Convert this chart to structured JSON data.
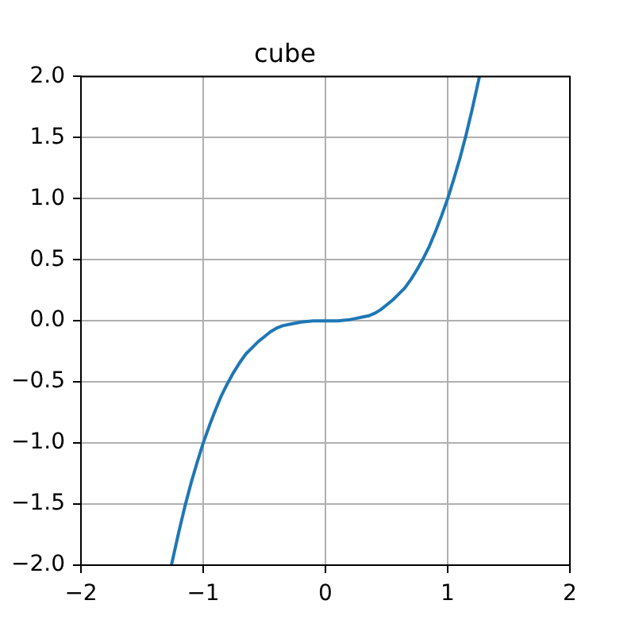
{
  "chart_data": {
    "type": "line",
    "title": "cube",
    "x": [
      -1.26,
      -1.2,
      -1.15,
      -1.1,
      -1.05,
      -1.0,
      -0.95,
      -0.9,
      -0.85,
      -0.8,
      -0.75,
      -0.7,
      -0.65,
      -0.6,
      -0.55,
      -0.5,
      -0.45,
      -0.4,
      -0.35,
      -0.3,
      -0.25,
      -0.2,
      -0.1,
      0,
      0.1,
      0.2,
      0.25,
      0.3,
      0.35,
      0.4,
      0.45,
      0.5,
      0.55,
      0.6,
      0.65,
      0.7,
      0.75,
      0.8,
      0.85,
      0.9,
      0.95,
      1.0,
      1.05,
      1.1,
      1.15,
      1.2,
      1.26
    ],
    "values": [
      -2.0,
      -1.73,
      -1.52,
      -1.33,
      -1.16,
      -1.0,
      -0.86,
      -0.73,
      -0.61,
      -0.51,
      -0.42,
      -0.34,
      -0.27,
      -0.22,
      -0.17,
      -0.13,
      -0.09,
      -0.06,
      -0.04,
      -0.03,
      -0.02,
      -0.01,
      0.0,
      0.0,
      0.0,
      0.01,
      0.02,
      0.03,
      0.04,
      0.06,
      0.09,
      0.13,
      0.17,
      0.22,
      0.27,
      0.34,
      0.42,
      0.51,
      0.61,
      0.73,
      0.86,
      1.0,
      1.16,
      1.33,
      1.52,
      1.73,
      2.0
    ],
    "color": "#1f77b4",
    "line_style": "solid",
    "xlim": [
      -2,
      2
    ],
    "ylim": [
      -2,
      2
    ],
    "xticks": [
      {
        "value": -2,
        "label": "−2"
      },
      {
        "value": -1,
        "label": "−1"
      },
      0,
      1,
      2
    ],
    "yticks": [
      {
        "value": -2,
        "label": "−2.0"
      },
      {
        "value": -1.5,
        "label": "−1.5"
      },
      {
        "value": -1,
        "label": "−1.0"
      },
      {
        "value": -0.5,
        "label": "−0.5"
      },
      {
        "value": 0,
        "label": "0.0"
      },
      0.5,
      {
        "value": 1,
        "label": "1.0"
      },
      1.5,
      {
        "value": 2,
        "label": "2.0"
      }
    ],
    "grid": true
  }
}
